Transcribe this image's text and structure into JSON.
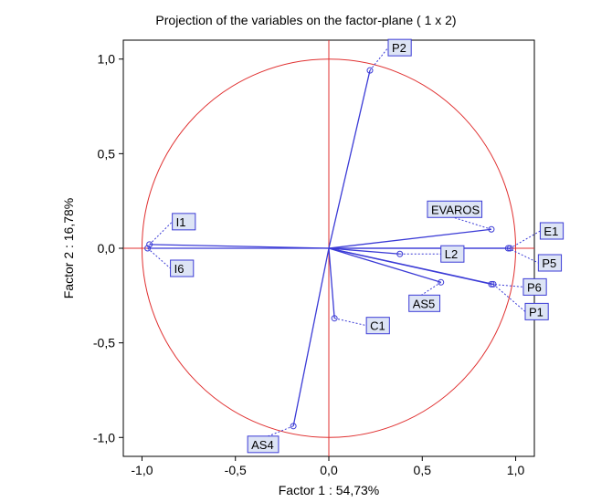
{
  "chart_data": {
    "type": "scatter",
    "title": "Projection of the variables on the factor-plane (  1 x 2)",
    "xlabel": "Factor 1 : 54,73%",
    "ylabel": "Factor 2 : 16,78%",
    "xlim": [
      -1.1,
      1.1
    ],
    "ylim": [
      -1.1,
      1.1
    ],
    "xticks": [
      "-1,0",
      "-0,5",
      "0,0",
      "0,5",
      "1,0"
    ],
    "xtick_values": [
      -1,
      -0.5,
      0,
      0.5,
      1
    ],
    "yticks": [
      "1,0",
      "0,5",
      "0,0",
      "-0,5",
      "-1,0"
    ],
    "ytick_values": [
      1,
      0.5,
      0,
      -0.5,
      -1
    ],
    "grid": false,
    "unit_circle": true,
    "reference_lines": [
      0
    ],
    "points": [
      {
        "name": "P2",
        "x": 0.22,
        "y": 0.94
      },
      {
        "name": "I1",
        "x": -0.96,
        "y": 0.02
      },
      {
        "name": "I6",
        "x": -0.97,
        "y": 0.0
      },
      {
        "name": "EVAROS",
        "x": 0.87,
        "y": 0.1
      },
      {
        "name": "E1",
        "x": 0.97,
        "y": 0.0
      },
      {
        "name": "P5",
        "x": 0.96,
        "y": 0.0
      },
      {
        "name": "L2",
        "x": 0.38,
        "y": -0.03
      },
      {
        "name": "AS5",
        "x": 0.6,
        "y": -0.18
      },
      {
        "name": "P6",
        "x": 0.87,
        "y": -0.19
      },
      {
        "name": "P1",
        "x": 0.88,
        "y": -0.19
      },
      {
        "name": "C1",
        "x": 0.03,
        "y": -0.37
      },
      {
        "name": "AS4",
        "x": -0.19,
        "y": -0.94
      }
    ],
    "colors": {
      "vectors": "#3b3bd6",
      "circle": "#e03030",
      "axes_lines": "#e03030",
      "label_box": "#dde4f5",
      "label_border": "#3b3bd6"
    }
  }
}
